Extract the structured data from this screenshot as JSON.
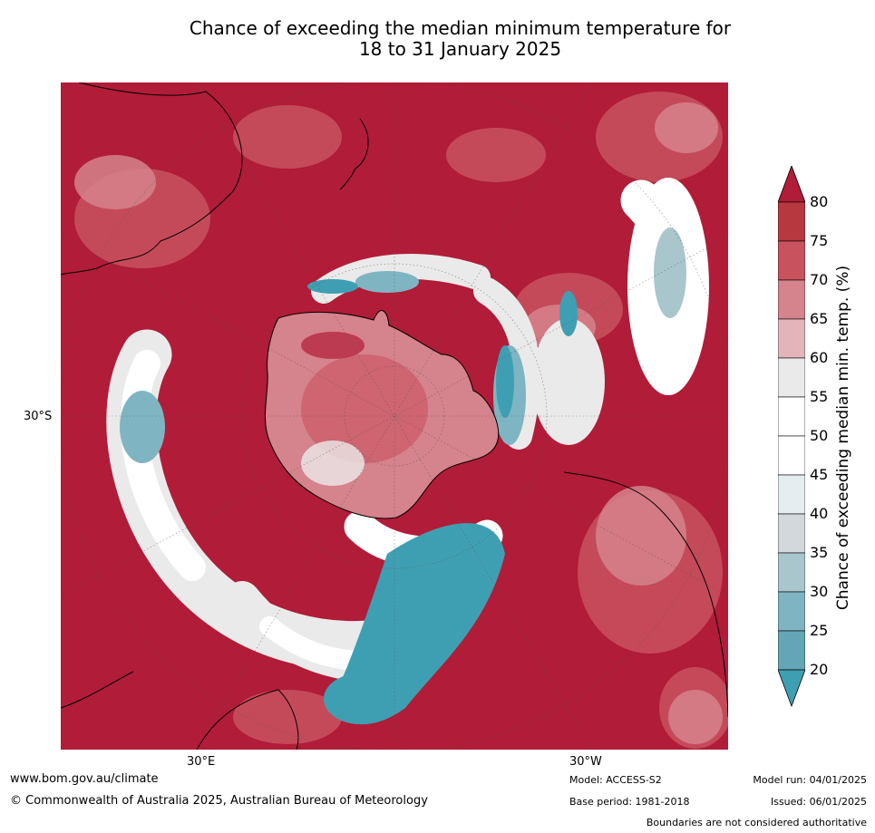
{
  "title_line1": "Chance of exceeding the median minimum temperature for",
  "title_line2": "18 to 31 January 2025",
  "map": {
    "lat_label": "30°S",
    "lon_labels": [
      "30°E",
      "30°W"
    ],
    "colors": {
      "ocean_high": "#b11c38",
      "c75": "#c9525f",
      "c70": "#d5838c",
      "c65": "#e2b5ba",
      "c60": "#ebeaea",
      "c55": "#ffffff",
      "c45": "#e6edf0",
      "c40": "#d2d8db",
      "c35": "#a9c6cc",
      "c30": "#7fb5c2",
      "c25": "#64a6b5",
      "c20": "#3f9fb2"
    }
  },
  "colorbar": {
    "title": "Chance of exceeding median min. temp. (%)",
    "ticks": [
      "80",
      "75",
      "70",
      "65",
      "60",
      "55",
      "50",
      "45",
      "40",
      "35",
      "30",
      "25",
      "20"
    ],
    "colors": [
      "#b11c38",
      "#b8383f",
      "#c9525f",
      "#d5838c",
      "#e2b5ba",
      "#ebeaea",
      "#ffffff",
      "#ffffff",
      "#e6edf0",
      "#d2d8db",
      "#a9c6cc",
      "#7fb5c2",
      "#64a6b5",
      "#3f9fb2"
    ]
  },
  "footer": {
    "url": "www.bom.gov.au/climate",
    "copyright": "© Commonwealth of Australia 2025, Australian Bureau of Meteorology",
    "model": "Model: ACCESS-S2",
    "base_period": "Base period: 1981-2018",
    "model_run": "Model run: 04/01/2025",
    "issued": "Issued: 06/01/2025",
    "disclaimer": "Boundaries are not considered authoritative"
  }
}
